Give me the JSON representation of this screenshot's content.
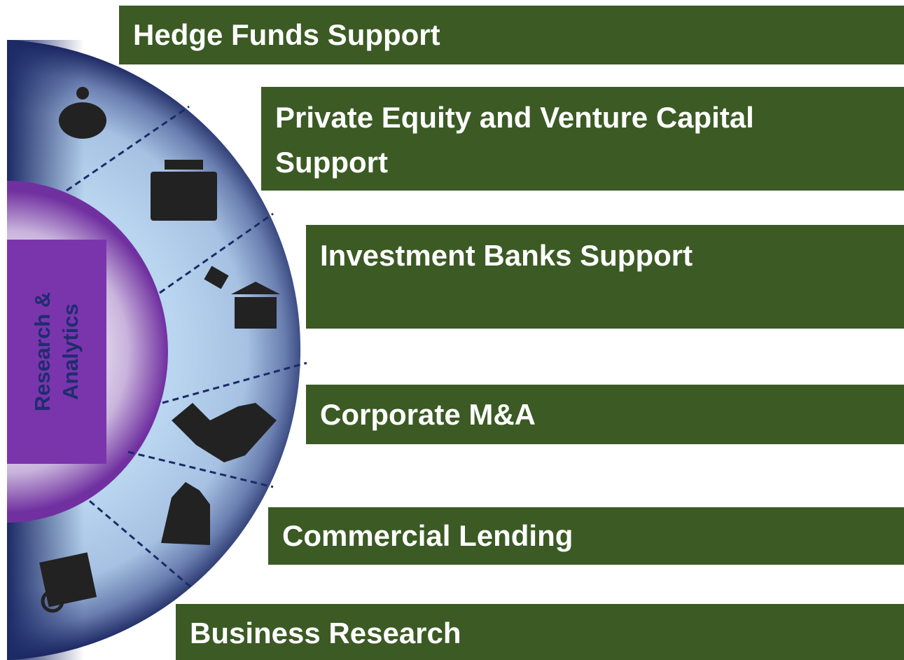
{
  "center": {
    "label": "Research & Analytics"
  },
  "items": [
    {
      "label": "Hedge Funds Support"
    },
    {
      "label": "Private Equity and Venture Capital Support"
    },
    {
      "label": "Investment Banks Support"
    },
    {
      "label": "Corporate M&A"
    },
    {
      "label": "Commercial Lending"
    },
    {
      "label": "Business Research"
    }
  ]
}
